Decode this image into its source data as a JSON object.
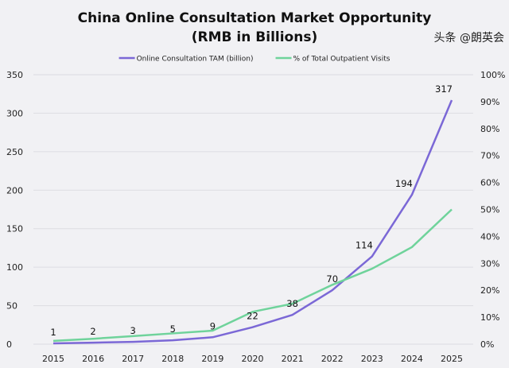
{
  "chart_data": {
    "type": "line",
    "title": "China Online Consultation Market Opportunity",
    "subtitle": "(RMB in Billions)",
    "x": [
      "2015",
      "2016",
      "2017",
      "2018",
      "2019",
      "2020",
      "2021",
      "2022",
      "2023",
      "2024",
      "2025"
    ],
    "series": [
      {
        "name": "Online Consultation TAM (billion)",
        "axis": "left",
        "color": "#7b68d6",
        "values": [
          1,
          2,
          3,
          5,
          9,
          22,
          38,
          70,
          114,
          194,
          317
        ],
        "data_labels": true
      },
      {
        "name": "% of Total Outpatient Visits",
        "axis": "right",
        "color": "#6fd39b",
        "values": [
          1.2,
          2,
          3,
          4,
          5,
          12,
          15,
          22,
          28,
          36,
          50
        ],
        "data_labels": false
      }
    ],
    "left_axis": {
      "ylim": [
        0,
        350
      ],
      "ticks": [
        "0",
        "50",
        "100",
        "150",
        "200",
        "250",
        "300",
        "350"
      ]
    },
    "right_axis": {
      "ylim": [
        0,
        100
      ],
      "ticks": [
        "0%",
        "10%",
        "20%",
        "30%",
        "40%",
        "50%",
        "60%",
        "70%",
        "80%",
        "90%",
        "100%"
      ]
    },
    "grid": true,
    "legend": "top-center"
  },
  "watermark": "头条 @朗英会"
}
